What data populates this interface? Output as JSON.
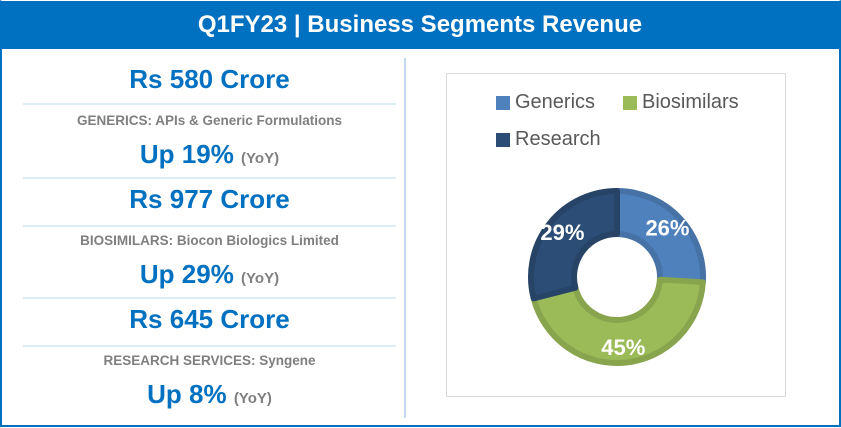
{
  "header": {
    "title": "Q1FY23 | Business Segments Revenue"
  },
  "segments": [
    {
      "amount": "Rs 580 Crore",
      "description": "GENERICS: APIs & Generic Formulations",
      "growth": "Up 19%",
      "growth_suffix": "(YoY)"
    },
    {
      "amount": "Rs 977 Crore",
      "description": "BIOSIMILARS: Biocon Biologics Limited",
      "growth": "Up 29%",
      "growth_suffix": "(YoY)"
    },
    {
      "amount": "Rs 645 Crore",
      "description": "RESEARCH SERVICES: Syngene",
      "growth": "Up 8%",
      "growth_suffix": "(YoY)"
    }
  ],
  "colors": {
    "header_bg": "#0070c0",
    "accent_text": "#0070c0",
    "muted_text": "#7f7f7f",
    "generics": "#4f81bd",
    "biosimilars": "#9bbb59",
    "research": "#2c4d75"
  },
  "chart_data": {
    "type": "pie",
    "subtype": "donut",
    "title": "",
    "categories": [
      "Generics",
      "Biosimilars",
      "Research"
    ],
    "values": [
      26,
      45,
      29
    ],
    "data_labels": [
      "26%",
      "45%",
      "29%"
    ],
    "unit": "%",
    "start_angle": "12 o'clock",
    "direction": "clockwise",
    "legend": {
      "position": "top",
      "entries": [
        "Generics",
        "Biosimilars",
        "Research"
      ]
    }
  }
}
